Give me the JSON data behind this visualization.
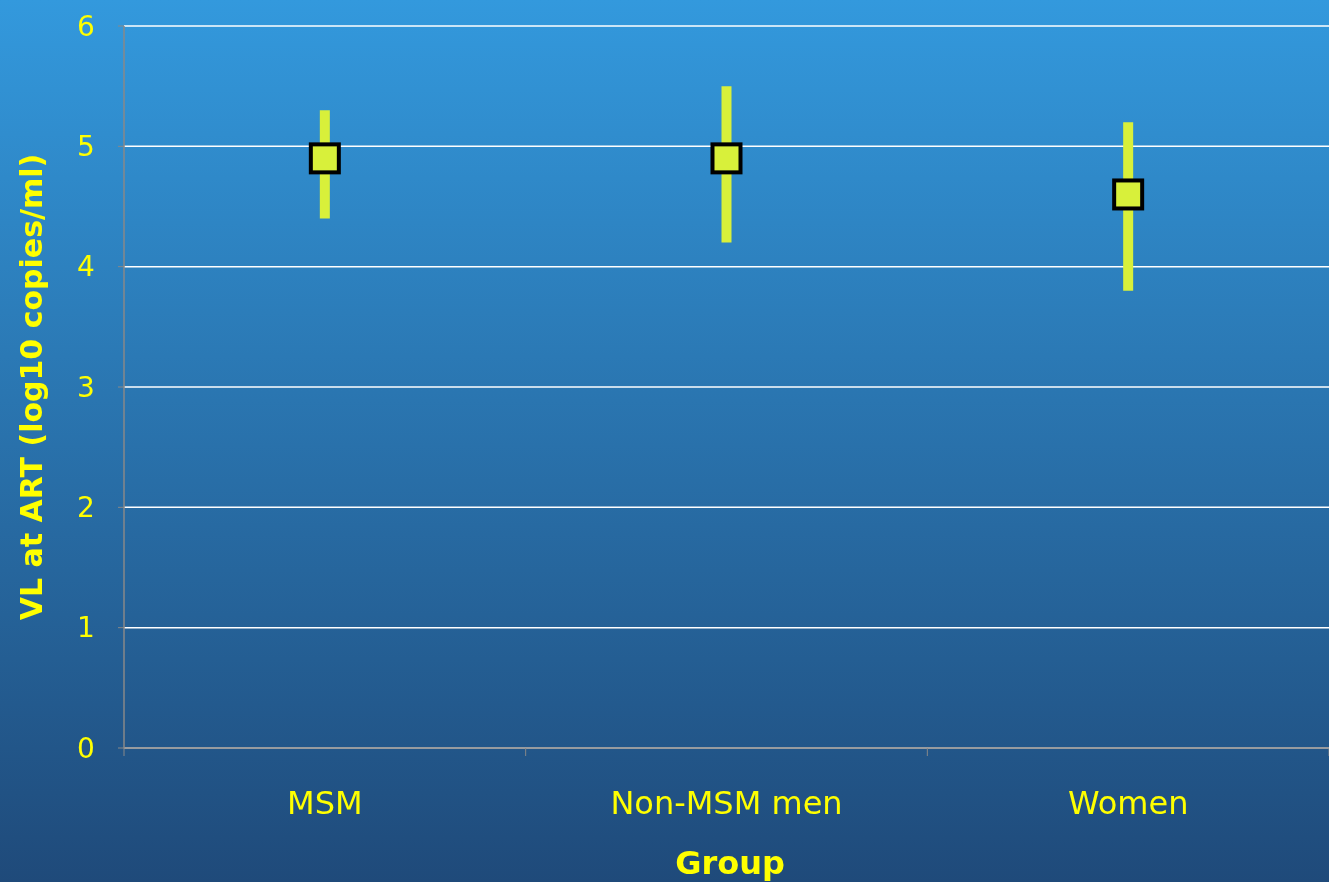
{
  "chart_data": {
    "type": "scatter",
    "xlabel": "Group",
    "ylabel": "VL at ART (log10 copies/ml)",
    "categories": [
      "MSM",
      "Non-MSM men",
      "Women"
    ],
    "values": [
      4.9,
      4.9,
      4.6
    ],
    "errors": [
      [
        4.4,
        5.3
      ],
      [
        4.2,
        5.5
      ],
      [
        3.8,
        5.2
      ]
    ],
    "color": "#d8f03a",
    "marker": "square",
    "ylim": [
      0,
      6
    ],
    "yticks": [
      0,
      1,
      2,
      3,
      4,
      5,
      6
    ],
    "grid": "y"
  }
}
